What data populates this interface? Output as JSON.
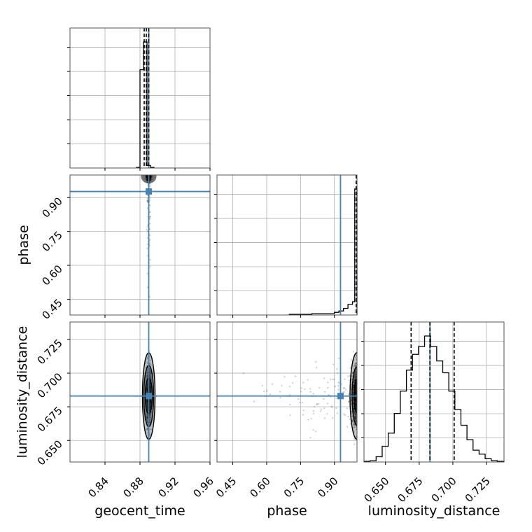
{
  "chart_data": {
    "type": "corner",
    "parameters": [
      {
        "name": "geocent_time",
        "label": "geocent_time",
        "range": [
          0.8,
          0.96
        ],
        "ticks": [
          0.84,
          0.88,
          0.92,
          0.96
        ],
        "tick_labels": [
          "0.84",
          "0.88",
          "0.92",
          "0.96"
        ],
        "truth": 0.89,
        "quantiles": [
          0.8848,
          0.8872,
          0.89
        ],
        "histogram": {
          "edges": [
            0.876,
            0.88,
            0.884,
            0.888,
            0.892,
            0.896
          ],
          "counts": [
            0.005,
            0.78,
            1.0,
            0.02,
            0.005
          ]
        }
      },
      {
        "name": "phase",
        "label": "phase",
        "range": [
          0.38,
          1.0
        ],
        "ticks": [
          0.45,
          0.6,
          0.75,
          0.9
        ],
        "tick_labels": [
          "0.45",
          "0.60",
          "0.75",
          "0.90"
        ],
        "truth": 0.927,
        "quantiles": [
          0.9962,
          0.9985,
          0.9996
        ],
        "histogram": {
          "edges": [
            0.7,
            0.8,
            0.9,
            0.92,
            0.94,
            0.96,
            0.98,
            0.99,
            1.0
          ],
          "counts": [
            0.005,
            0.01,
            0.02,
            0.03,
            0.05,
            0.08,
            0.1,
            0.95
          ]
        }
      },
      {
        "name": "luminosity_distance",
        "label": "luminosity_distance",
        "range": [
          0.634,
          0.738
        ],
        "ticks": [
          0.65,
          0.675,
          0.7,
          0.725
        ],
        "tick_labels": [
          "0.650",
          "0.675",
          "0.700",
          "0.725"
        ],
        "truth": 0.683,
        "quantiles": [
          0.669,
          0.683,
          0.701
        ],
        "histogram": {
          "edges": [
            0.634,
            0.6385,
            0.643,
            0.6475,
            0.652,
            0.6565,
            0.661,
            0.6655,
            0.67,
            0.6745,
            0.679,
            0.6835,
            0.688,
            0.6925,
            0.697,
            0.7015,
            0.706,
            0.7105,
            0.715,
            0.7195,
            0.724,
            0.7285,
            0.733,
            0.738
          ],
          "counts": [
            0.005,
            0.01,
            0.04,
            0.12,
            0.22,
            0.37,
            0.54,
            0.7,
            0.82,
            0.88,
            0.96,
            0.88,
            0.77,
            0.68,
            0.54,
            0.4,
            0.28,
            0.17,
            0.09,
            0.06,
            0.025,
            0.01,
            0.005
          ]
        }
      }
    ],
    "truth_color": "#4682b4",
    "data_color": "#000000",
    "quantile_style": "dashed",
    "grid": true
  }
}
